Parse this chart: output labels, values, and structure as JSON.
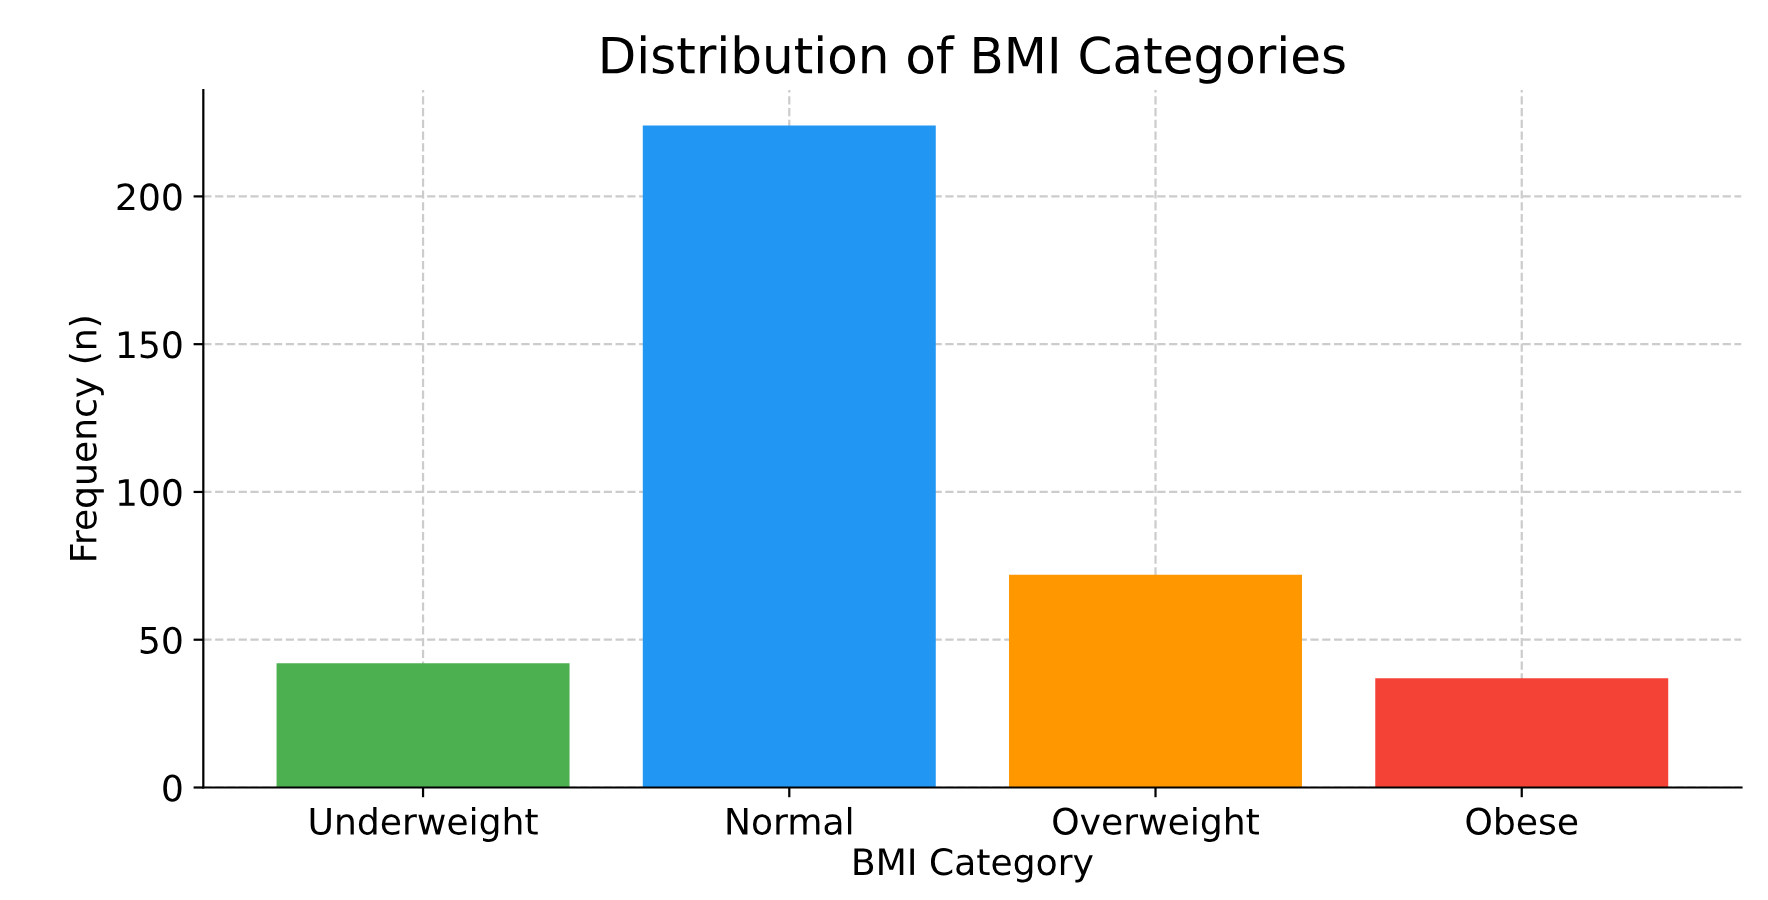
{
  "chart_data": {
    "type": "bar",
    "title": "Distribution of BMI Categories",
    "xlabel": "BMI Category",
    "ylabel": "Frequency (n)",
    "categories": [
      "Underweight",
      "Normal",
      "Overweight",
      "Obese"
    ],
    "values": [
      42,
      224,
      72,
      37
    ],
    "colors": [
      "#4caf50",
      "#2196f3",
      "#ff9800",
      "#f44336"
    ],
    "ylim": [
      0,
      236
    ],
    "yticks": [
      0,
      50,
      100,
      150,
      200
    ],
    "grid": true
  }
}
